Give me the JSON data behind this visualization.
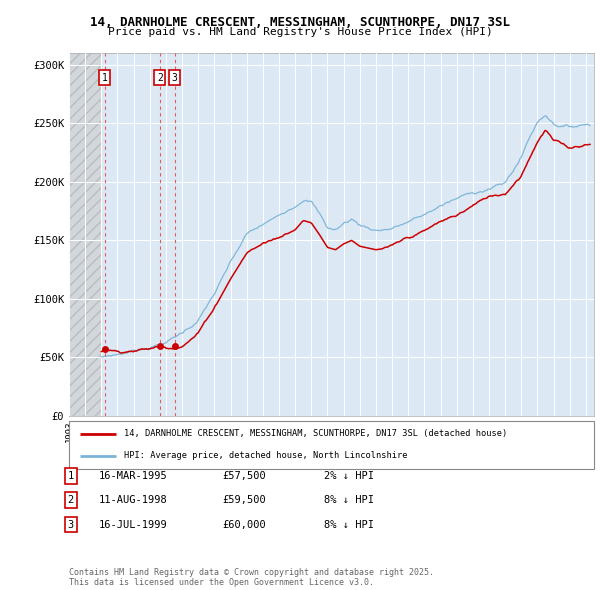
{
  "title_line1": "14, DARNHOLME CRESCENT, MESSINGHAM, SCUNTHORPE, DN17 3SL",
  "title_line2": "Price paid vs. HM Land Registry's House Price Index (HPI)",
  "yticks": [
    0,
    50000,
    100000,
    150000,
    200000,
    250000,
    300000
  ],
  "ytick_labels": [
    "£0",
    "£50K",
    "£100K",
    "£150K",
    "£200K",
    "£250K",
    "£300K"
  ],
  "xlim_start": 1993.0,
  "xlim_end": 2025.5,
  "ylim_min": 0,
  "ylim_max": 310000,
  "plot_bg_color": "#dce9f5",
  "hatch_end_year": 1995.0,
  "sale_color": "#cc0000",
  "hpi_color": "#7ab4d8",
  "purchase_dates": [
    1995.21,
    1998.62,
    1999.54
  ],
  "purchase_prices": [
    57500,
    59500,
    60000
  ],
  "purchase_labels": [
    "1",
    "2",
    "3"
  ],
  "legend_sale_label": "14, DARNHOLME CRESCENT, MESSINGHAM, SCUNTHORPE, DN17 3SL (detached house)",
  "legend_hpi_label": "HPI: Average price, detached house, North Lincolnshire",
  "table_rows": [
    [
      "1",
      "16-MAR-1995",
      "£57,500",
      "2% ↓ HPI"
    ],
    [
      "2",
      "11-AUG-1998",
      "£59,500",
      "8% ↓ HPI"
    ],
    [
      "3",
      "16-JUL-1999",
      "£60,000",
      "8% ↓ HPI"
    ]
  ],
  "footer_text": "Contains HM Land Registry data © Crown copyright and database right 2025.\nThis data is licensed under the Open Government Licence v3.0.",
  "grid_color": "#ffffff",
  "vline_color": "#dd4444"
}
